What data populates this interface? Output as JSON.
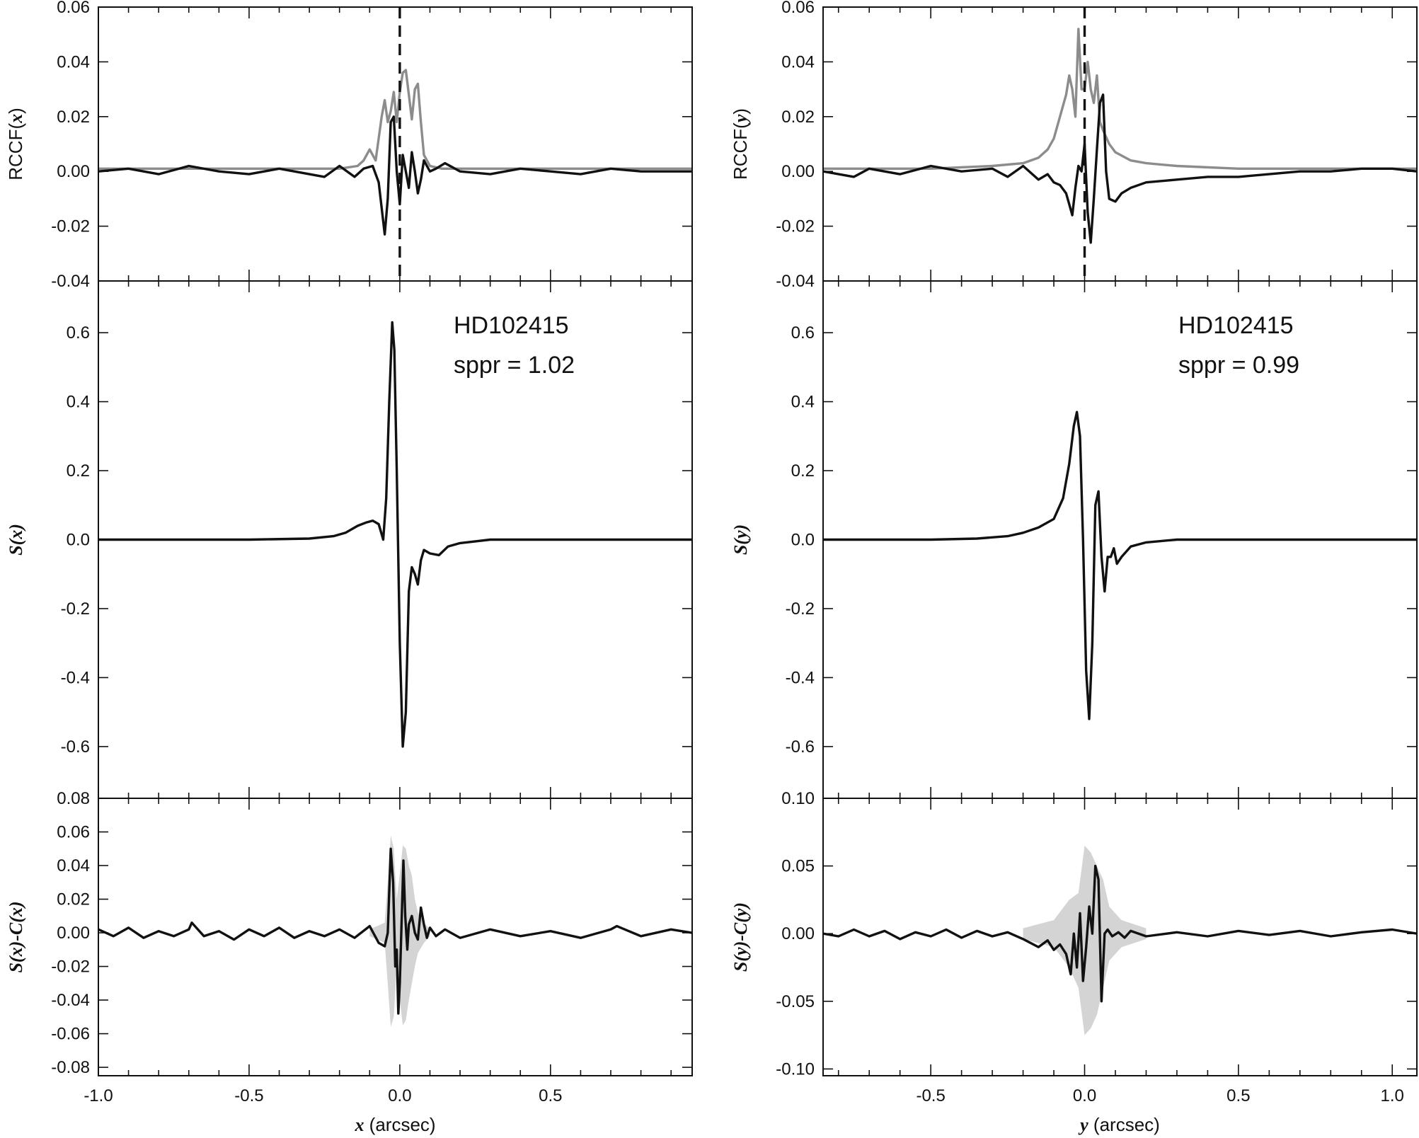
{
  "chart_data": [
    {
      "id": "rccf-x",
      "type": "line",
      "ylabel": "RCCF(x)",
      "ylabel_prefix": "RCCF(",
      "ylabel_var": "x",
      "ylabel_suffix": ")",
      "xlim": [
        -1.0,
        0.97
      ],
      "ylim": [
        -0.04,
        0.06
      ],
      "yticks": [
        "0.06",
        "0.04",
        "0.02",
        "0.00",
        "-0.02",
        "-0.04"
      ],
      "yticks_values": [
        0.06,
        0.04,
        0.02,
        0.0,
        -0.02,
        -0.04
      ],
      "vline_x": 0.0,
      "series": [
        {
          "color": "#8c8c8c",
          "x": [
            -1.0,
            -0.5,
            -0.2,
            -0.14,
            -0.12,
            -0.1,
            -0.08,
            -0.06,
            -0.05,
            -0.04,
            -0.03,
            -0.02,
            -0.01,
            0.0,
            0.01,
            0.02,
            0.03,
            0.04,
            0.05,
            0.06,
            0.07,
            0.08,
            0.1,
            0.14,
            0.2,
            0.5,
            0.97
          ],
          "y": [
            0.001,
            0.001,
            0.001,
            0.002,
            0.004,
            0.008,
            0.004,
            0.02,
            0.026,
            0.018,
            0.022,
            0.029,
            0.018,
            0.029,
            0.036,
            0.037,
            0.028,
            0.019,
            0.03,
            0.032,
            0.018,
            0.006,
            0.002,
            0.001,
            0.001,
            0.001,
            0.001
          ]
        },
        {
          "color": "#111111",
          "x": [
            -1.0,
            -0.9,
            -0.8,
            -0.7,
            -0.6,
            -0.5,
            -0.4,
            -0.3,
            -0.25,
            -0.2,
            -0.15,
            -0.12,
            -0.09,
            -0.07,
            -0.05,
            -0.04,
            -0.03,
            -0.02,
            -0.01,
            0.0,
            0.01,
            0.02,
            0.03,
            0.04,
            0.05,
            0.06,
            0.07,
            0.08,
            0.09,
            0.1,
            0.12,
            0.15,
            0.2,
            0.3,
            0.4,
            0.5,
            0.6,
            0.7,
            0.8,
            0.97
          ],
          "y": [
            0.0,
            0.001,
            -0.001,
            0.002,
            0.0,
            -0.001,
            0.001,
            -0.001,
            -0.002,
            0.002,
            -0.002,
            0.001,
            0.002,
            -0.004,
            -0.023,
            -0.01,
            0.018,
            0.02,
            0.0,
            -0.012,
            0.006,
            0.0,
            -0.006,
            0.007,
            0.0,
            -0.008,
            -0.003,
            0.004,
            0.002,
            0.0,
            0.001,
            0.003,
            0.0,
            -0.001,
            0.001,
            0.0,
            -0.001,
            0.001,
            0.0,
            0.0
          ]
        }
      ]
    },
    {
      "id": "rccf-y",
      "type": "line",
      "ylabel": "RCCF(y)",
      "ylabel_prefix": "RCCF(",
      "ylabel_var": "y",
      "ylabel_suffix": ")",
      "xlim": [
        -0.85,
        1.08
      ],
      "ylim": [
        -0.04,
        0.06
      ],
      "yticks": [
        "0.06",
        "0.04",
        "0.02",
        "0.00",
        "-0.02",
        "-0.04"
      ],
      "yticks_values": [
        0.06,
        0.04,
        0.02,
        0.0,
        -0.02,
        -0.04
      ],
      "vline_x": 0.0,
      "series": [
        {
          "color": "#8c8c8c",
          "x": [
            -0.85,
            -0.5,
            -0.3,
            -0.2,
            -0.15,
            -0.12,
            -0.1,
            -0.08,
            -0.06,
            -0.05,
            -0.04,
            -0.03,
            -0.02,
            -0.01,
            0.0,
            0.01,
            0.02,
            0.03,
            0.04,
            0.05,
            0.06,
            0.08,
            0.1,
            0.15,
            0.2,
            0.3,
            0.5,
            1.08
          ],
          "y": [
            0.001,
            0.001,
            0.002,
            0.003,
            0.005,
            0.008,
            0.012,
            0.02,
            0.028,
            0.035,
            0.03,
            0.02,
            0.052,
            0.03,
            0.03,
            0.04,
            0.03,
            0.025,
            0.035,
            0.018,
            0.015,
            0.01,
            0.007,
            0.004,
            0.003,
            0.002,
            0.001,
            0.001
          ]
        },
        {
          "color": "#111111",
          "x": [
            -0.85,
            -0.75,
            -0.7,
            -0.6,
            -0.5,
            -0.4,
            -0.3,
            -0.25,
            -0.2,
            -0.15,
            -0.12,
            -0.1,
            -0.08,
            -0.06,
            -0.05,
            -0.04,
            -0.03,
            -0.02,
            -0.01,
            0.0,
            0.01,
            0.02,
            0.03,
            0.04,
            0.05,
            0.06,
            0.07,
            0.08,
            0.1,
            0.12,
            0.15,
            0.2,
            0.3,
            0.4,
            0.5,
            0.6,
            0.7,
            0.8,
            0.9,
            1.0,
            1.08
          ],
          "y": [
            0.0,
            -0.002,
            0.001,
            -0.001,
            0.002,
            0.0,
            0.001,
            -0.002,
            0.002,
            -0.003,
            -0.001,
            -0.004,
            -0.005,
            -0.008,
            -0.012,
            -0.016,
            -0.006,
            0.002,
            0.0,
            0.01,
            -0.015,
            -0.026,
            -0.01,
            0.008,
            0.025,
            0.028,
            0.0,
            -0.01,
            -0.011,
            -0.008,
            -0.006,
            -0.004,
            -0.003,
            -0.002,
            -0.002,
            -0.001,
            0.0,
            0.0,
            0.001,
            0.001,
            0.0
          ]
        }
      ]
    },
    {
      "id": "s-x",
      "type": "line",
      "ylabel": "S(x)",
      "ylabel_var": "S(x)",
      "xlim": [
        -1.0,
        0.97
      ],
      "ylim": [
        -0.75,
        0.75
      ],
      "yticks": [
        "0.6",
        "0.4",
        "0.2",
        "0.0",
        "-0.2",
        "-0.4",
        "-0.6"
      ],
      "yticks_values": [
        0.6,
        0.4,
        0.2,
        0.0,
        -0.2,
        -0.4,
        -0.6
      ],
      "annotation": [
        "HD102415",
        "sppr = 1.02"
      ],
      "series": [
        {
          "color": "#111111",
          "x": [
            -1.0,
            -0.5,
            -0.3,
            -0.22,
            -0.18,
            -0.14,
            -0.11,
            -0.09,
            -0.07,
            -0.055,
            -0.045,
            -0.035,
            -0.025,
            -0.018,
            -0.01,
            0.0,
            0.01,
            0.02,
            0.03,
            0.04,
            0.05,
            0.06,
            0.07,
            0.08,
            0.1,
            0.13,
            0.16,
            0.2,
            0.3,
            0.5,
            0.97
          ],
          "y": [
            0.0,
            0.0,
            0.003,
            0.01,
            0.02,
            0.04,
            0.05,
            0.055,
            0.045,
            0.0,
            0.12,
            0.4,
            0.63,
            0.55,
            0.2,
            -0.3,
            -0.6,
            -0.5,
            -0.15,
            -0.08,
            -0.1,
            -0.13,
            -0.06,
            -0.03,
            -0.04,
            -0.045,
            -0.02,
            -0.01,
            0.0,
            0.0,
            0.0
          ]
        }
      ]
    },
    {
      "id": "s-y",
      "type": "line",
      "ylabel": "S(y)",
      "ylabel_var": "S(y)",
      "xlim": [
        -0.85,
        1.08
      ],
      "ylim": [
        -0.75,
        0.75
      ],
      "yticks": [
        "0.6",
        "0.4",
        "0.2",
        "0.0",
        "-0.2",
        "-0.4",
        "-0.6"
      ],
      "yticks_values": [
        0.6,
        0.4,
        0.2,
        0.0,
        -0.2,
        -0.4,
        -0.6
      ],
      "annotation": [
        "HD102415",
        "sppr = 0.99"
      ],
      "series": [
        {
          "color": "#111111",
          "x": [
            -0.85,
            -0.5,
            -0.35,
            -0.25,
            -0.2,
            -0.15,
            -0.1,
            -0.07,
            -0.05,
            -0.035,
            -0.025,
            -0.015,
            -0.005,
            0.005,
            0.015,
            0.025,
            0.035,
            0.045,
            0.055,
            0.065,
            0.075,
            0.085,
            0.095,
            0.105,
            0.12,
            0.15,
            0.2,
            0.3,
            0.5,
            1.08
          ],
          "y": [
            0.0,
            0.0,
            0.003,
            0.01,
            0.02,
            0.035,
            0.06,
            0.12,
            0.22,
            0.33,
            0.37,
            0.3,
            0.0,
            -0.38,
            -0.52,
            -0.3,
            0.1,
            0.14,
            -0.05,
            -0.15,
            -0.05,
            -0.05,
            -0.025,
            -0.07,
            -0.05,
            -0.02,
            -0.008,
            0.0,
            0.0,
            0.0
          ]
        }
      ]
    },
    {
      "id": "resid-x",
      "type": "line",
      "ylabel": "S(x)-C(x)",
      "ylabel_var": "S(x)-C(x)",
      "xlabel": "x (arcsec)",
      "xlabel_var": "x",
      "xlabel_unit": " (arcsec)",
      "xlim": [
        -1.0,
        0.97
      ],
      "ylim": [
        -0.085,
        0.08
      ],
      "yticks": [
        "0.08",
        "0.06",
        "0.04",
        "0.02",
        "0.00",
        "-0.02",
        "-0.04",
        "-0.06",
        "-0.08"
      ],
      "yticks_values": [
        0.08,
        0.06,
        0.04,
        0.02,
        0.0,
        -0.02,
        -0.04,
        -0.06,
        -0.08
      ],
      "xticks": [
        "-1.0",
        "-0.5",
        "0.0",
        "0.5"
      ],
      "xticks_values": [
        -1.0,
        -0.5,
        0.0,
        0.5
      ],
      "band": {
        "color": "#d4d4d4",
        "x": [
          -0.1,
          -0.05,
          -0.04,
          -0.03,
          -0.02,
          -0.01,
          0.0,
          0.01,
          0.02,
          0.03,
          0.04,
          0.05,
          0.06,
          0.08,
          0.1
        ],
        "upper": [
          0.002,
          0.006,
          0.03,
          0.058,
          0.05,
          0.02,
          0.035,
          0.052,
          0.05,
          0.04,
          0.034,
          0.02,
          0.012,
          0.006,
          0.002
        ],
        "lower": [
          -0.002,
          -0.006,
          -0.03,
          -0.056,
          -0.05,
          -0.02,
          -0.04,
          -0.055,
          -0.052,
          -0.04,
          -0.03,
          -0.02,
          -0.012,
          -0.006,
          -0.002
        ]
      },
      "series": [
        {
          "color": "#111111",
          "x": [
            -1.0,
            -0.95,
            -0.9,
            -0.85,
            -0.8,
            -0.75,
            -0.7,
            -0.69,
            -0.65,
            -0.6,
            -0.55,
            -0.5,
            -0.45,
            -0.4,
            -0.35,
            -0.3,
            -0.25,
            -0.2,
            -0.15,
            -0.1,
            -0.07,
            -0.05,
            -0.04,
            -0.03,
            -0.022,
            -0.015,
            -0.01,
            -0.005,
            0.0,
            0.005,
            0.012,
            0.018,
            0.025,
            0.03,
            0.04,
            0.05,
            0.06,
            0.07,
            0.08,
            0.09,
            0.1,
            0.12,
            0.15,
            0.2,
            0.3,
            0.4,
            0.5,
            0.6,
            0.7,
            0.72,
            0.8,
            0.9,
            0.97
          ],
          "y": [
            0.002,
            -0.002,
            0.003,
            -0.003,
            0.001,
            -0.002,
            0.002,
            0.006,
            -0.002,
            0.001,
            -0.004,
            0.002,
            -0.002,
            0.003,
            -0.003,
            0.001,
            -0.002,
            0.002,
            -0.003,
            0.004,
            -0.006,
            -0.008,
            0.0,
            0.05,
            0.03,
            -0.02,
            -0.01,
            -0.048,
            -0.03,
            0.0,
            0.043,
            0.01,
            -0.01,
            0.005,
            0.01,
            0.0,
            -0.004,
            0.015,
            0.005,
            -0.003,
            0.003,
            -0.002,
            0.002,
            -0.003,
            0.002,
            -0.002,
            0.001,
            -0.003,
            0.002,
            0.004,
            -0.002,
            0.002,
            0.0
          ]
        }
      ]
    },
    {
      "id": "resid-y",
      "type": "line",
      "ylabel": "S(y)-C(y)",
      "ylabel_var": "S(y)-C(y)",
      "xlabel": "y (arcsec)",
      "xlabel_var": "y",
      "xlabel_unit": " (arcsec)",
      "xlim": [
        -0.85,
        1.08
      ],
      "ylim": [
        -0.105,
        0.1
      ],
      "yticks": [
        "0.10",
        "0.05",
        "0.00",
        "-0.05",
        "-0.10"
      ],
      "yticks_values": [
        0.1,
        0.05,
        0.0,
        -0.05,
        -0.1
      ],
      "xticks": [
        "-0.5",
        "0.0",
        "0.5",
        "1.0"
      ],
      "xticks_values": [
        -0.5,
        0.0,
        0.5,
        1.0
      ],
      "band": {
        "color": "#d4d4d4",
        "x": [
          -0.2,
          -0.1,
          -0.05,
          -0.02,
          0.0,
          0.02,
          0.04,
          0.06,
          0.08,
          0.12,
          0.2
        ],
        "upper": [
          0.004,
          0.01,
          0.025,
          0.03,
          0.065,
          0.06,
          0.05,
          0.04,
          0.02,
          0.01,
          0.004
        ],
        "lower": [
          -0.004,
          -0.01,
          -0.025,
          -0.04,
          -0.075,
          -0.07,
          -0.06,
          -0.04,
          -0.02,
          -0.01,
          -0.004
        ]
      },
      "series": [
        {
          "color": "#111111",
          "x": [
            -0.85,
            -0.8,
            -0.75,
            -0.7,
            -0.65,
            -0.6,
            -0.55,
            -0.5,
            -0.45,
            -0.4,
            -0.35,
            -0.3,
            -0.25,
            -0.2,
            -0.15,
            -0.12,
            -0.1,
            -0.08,
            -0.06,
            -0.045,
            -0.035,
            -0.025,
            -0.015,
            -0.005,
            0.005,
            0.015,
            0.025,
            0.035,
            0.045,
            0.055,
            0.065,
            0.075,
            0.09,
            0.11,
            0.13,
            0.15,
            0.2,
            0.3,
            0.4,
            0.5,
            0.6,
            0.7,
            0.8,
            0.9,
            1.0,
            1.08
          ],
          "y": [
            0.0,
            -0.002,
            0.003,
            -0.002,
            0.002,
            -0.004,
            0.001,
            -0.002,
            0.003,
            -0.003,
            0.002,
            -0.002,
            0.001,
            -0.004,
            -0.01,
            -0.005,
            -0.012,
            -0.008,
            -0.015,
            -0.03,
            0.0,
            -0.025,
            0.015,
            -0.035,
            -0.01,
            0.02,
            0.0,
            0.05,
            0.04,
            -0.05,
            0.0,
            0.003,
            -0.002,
            0.001,
            -0.003,
            0.002,
            -0.002,
            0.001,
            -0.002,
            0.002,
            -0.001,
            0.002,
            -0.002,
            0.001,
            0.003,
            0.0
          ]
        }
      ]
    }
  ]
}
